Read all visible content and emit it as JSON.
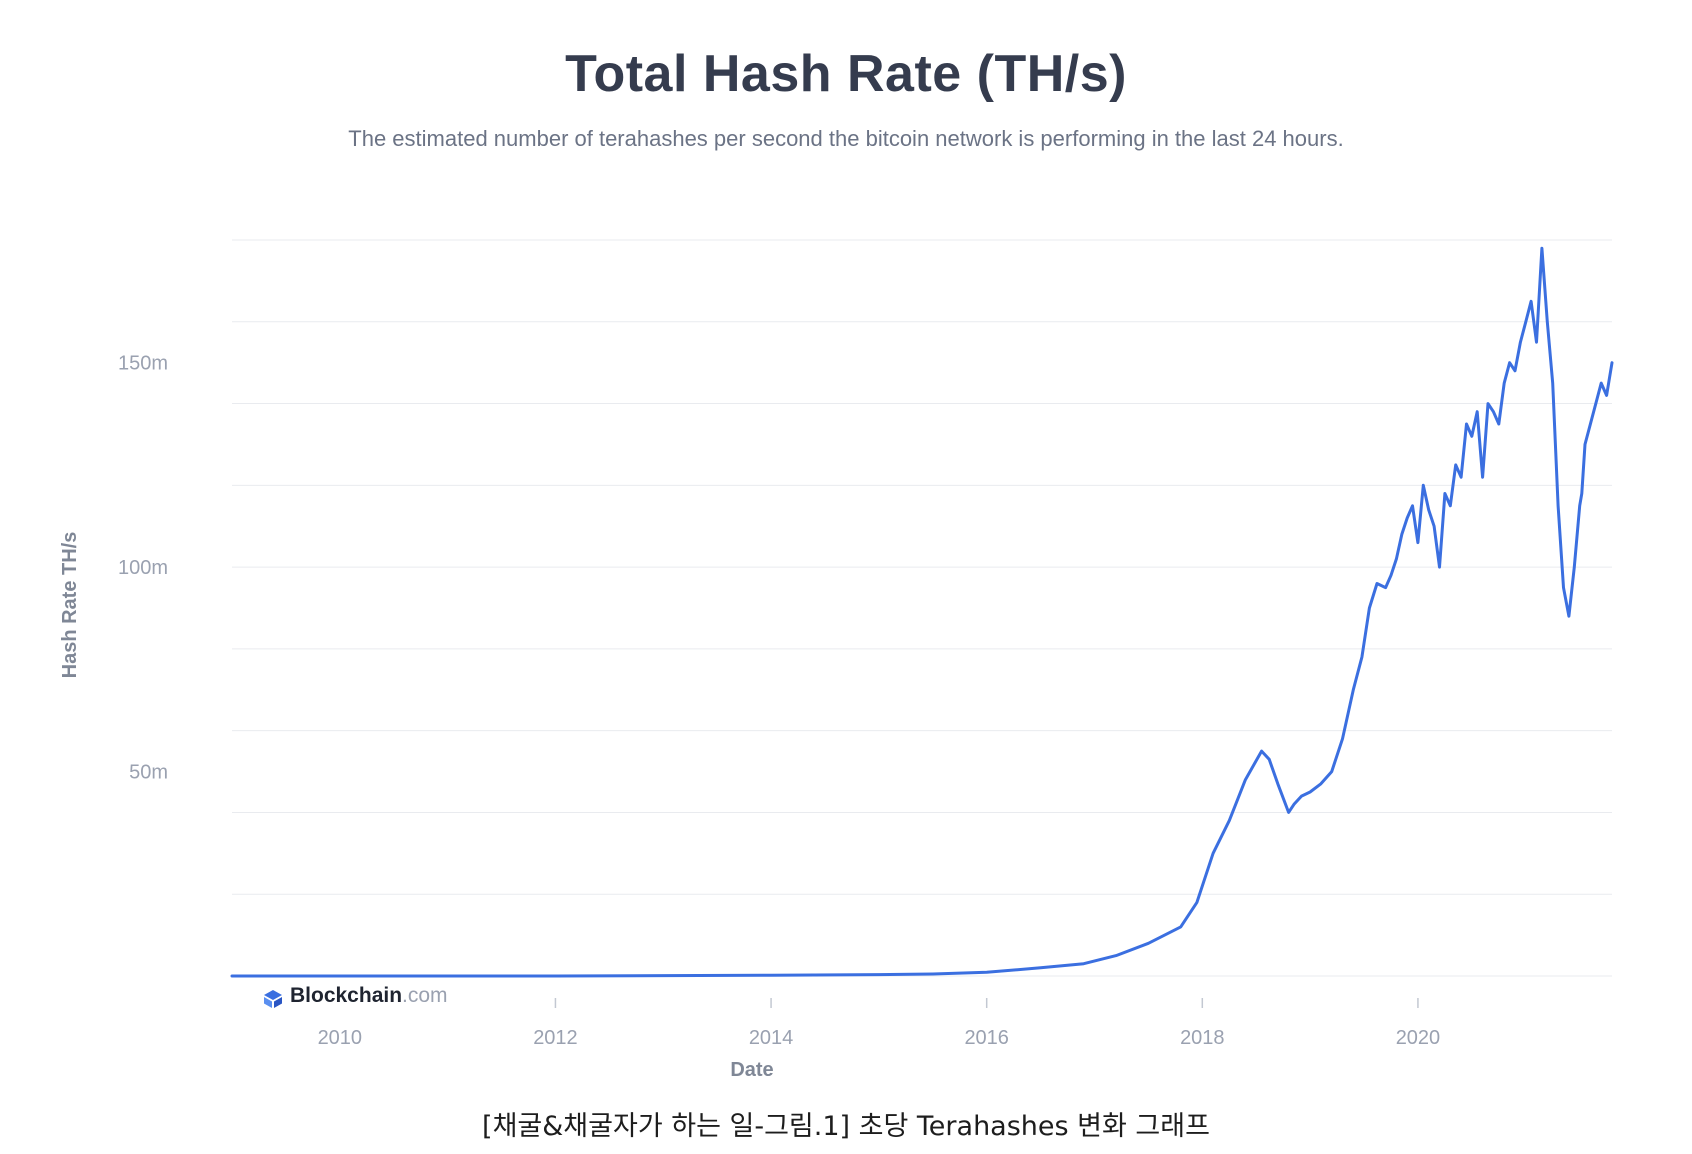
{
  "header": {
    "title": "Total Hash Rate (TH/s)",
    "subtitle": "The estimated number of terahashes per second the bitcoin network is performing in the last 24 hours."
  },
  "brand": {
    "name": "Blockchain",
    "suffix": ".com",
    "icon": "blockchain-logo-icon"
  },
  "caption": "[채굴&채굴자가 하는 일-그림.1] 초당 Terahashes 변화 그래프",
  "colors": {
    "line": "#3b6fe0",
    "grid": "#e9ebef",
    "text": "#353c4e"
  },
  "chart_data": {
    "type": "line",
    "title": "Total Hash Rate (TH/s)",
    "xlabel": "Date",
    "ylabel": "Hash Rate TH/s",
    "xlim": [
      2009.0,
      2021.8
    ],
    "ylim": [
      0,
      180000000
    ],
    "x_ticks": [
      {
        "value": 2010,
        "label": "2010"
      },
      {
        "value": 2012,
        "label": "2012"
      },
      {
        "value": 2014,
        "label": "2014"
      },
      {
        "value": 2016,
        "label": "2016"
      },
      {
        "value": 2018,
        "label": "2018"
      },
      {
        "value": 2020,
        "label": "2020"
      }
    ],
    "y_ticks": [
      {
        "value": 50000000,
        "label": "50m"
      },
      {
        "value": 100000000,
        "label": "100m"
      },
      {
        "value": 150000000,
        "label": "150m"
      }
    ],
    "grid": true,
    "series": [
      {
        "x": [
          2009.0,
          2012.0,
          2014.0,
          2015.0,
          2015.5,
          2016.0,
          2016.5,
          2016.9,
          2017.2,
          2017.5,
          2017.8,
          2017.95,
          2018.1,
          2018.25,
          2018.4,
          2018.55,
          2018.62,
          2018.7,
          2018.8,
          2018.85,
          2018.92,
          2019.0,
          2019.1,
          2019.2,
          2019.3,
          2019.4,
          2019.48,
          2019.55,
          2019.62,
          2019.7,
          2019.75,
          2019.8,
          2019.85,
          2019.9,
          2019.95,
          2020.0,
          2020.05,
          2020.1,
          2020.15,
          2020.2,
          2020.25,
          2020.3,
          2020.35,
          2020.4,
          2020.45,
          2020.5,
          2020.55,
          2020.6,
          2020.65,
          2020.7,
          2020.75,
          2020.8,
          2020.85,
          2020.9,
          2020.95,
          2021.0,
          2021.05,
          2021.1,
          2021.15,
          2021.2,
          2021.25,
          2021.3,
          2021.35,
          2021.4,
          2021.45,
          2021.5,
          2021.52,
          2021.55,
          2021.6,
          2021.65,
          2021.7,
          2021.75,
          2021.8
        ],
        "values": [
          0,
          0,
          200000,
          350000,
          500000,
          900000,
          2000000,
          3000000,
          5000000,
          8000000,
          12000000,
          18000000,
          30000000,
          38000000,
          48000000,
          55000000,
          53000000,
          47000000,
          40000000,
          42000000,
          44000000,
          45000000,
          47000000,
          50000000,
          58000000,
          70000000,
          78000000,
          90000000,
          96000000,
          95000000,
          98000000,
          102000000,
          108000000,
          112000000,
          115000000,
          106000000,
          120000000,
          114000000,
          110000000,
          100000000,
          118000000,
          115000000,
          125000000,
          122000000,
          135000000,
          132000000,
          138000000,
          122000000,
          140000000,
          138000000,
          135000000,
          145000000,
          150000000,
          148000000,
          155000000,
          160000000,
          165000000,
          155000000,
          178000000,
          160000000,
          145000000,
          115000000,
          95000000,
          88000000,
          100000000,
          115000000,
          118000000,
          130000000,
          135000000,
          140000000,
          145000000,
          142000000,
          150000000
        ]
      }
    ]
  }
}
